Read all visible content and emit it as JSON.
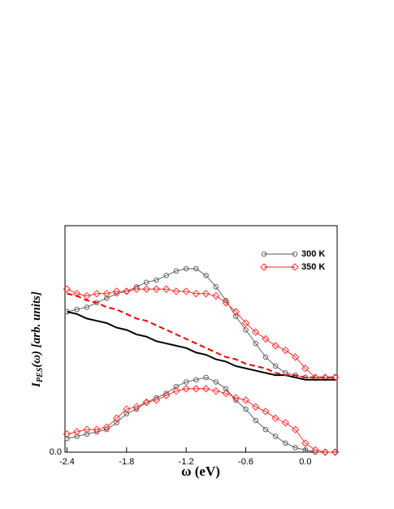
{
  "chart_data": {
    "type": "line",
    "x_label": "ω (eV)",
    "y_label": {
      "main": "I",
      "sub": "PES",
      "rest": "(ω) [arb. units]"
    },
    "x": [
      -2.4,
      -2.3,
      -2.2,
      -2.1,
      -2.0,
      -1.9,
      -1.8,
      -1.7,
      -1.6,
      -1.5,
      -1.4,
      -1.3,
      -1.2,
      -1.1,
      -1.0,
      -0.9,
      -0.8,
      -0.7,
      -0.6,
      -0.5,
      -0.4,
      -0.3,
      -0.2,
      -0.1,
      0.0,
      0.1,
      0.2,
      0.3
    ],
    "series": [
      {
        "name": "300 K",
        "color": "#555555",
        "marker": "circle",
        "style": "solid",
        "values": [
          0.62,
          0.63,
          0.64,
          0.66,
          0.68,
          0.7,
          0.71,
          0.73,
          0.75,
          0.76,
          0.78,
          0.8,
          0.81,
          0.81,
          0.78,
          0.73,
          0.67,
          0.6,
          0.54,
          0.48,
          0.42,
          0.38,
          0.35,
          0.34,
          0.33,
          0.33,
          0.33,
          0.33
        ]
      },
      {
        "name": "350 K",
        "color": "#ff2020",
        "marker": "diamond",
        "style": "solid",
        "values": [
          0.72,
          0.7,
          0.69,
          0.7,
          0.7,
          0.71,
          0.71,
          0.72,
          0.72,
          0.72,
          0.72,
          0.71,
          0.71,
          0.7,
          0.7,
          0.69,
          0.66,
          0.62,
          0.57,
          0.53,
          0.5,
          0.47,
          0.45,
          0.42,
          0.37,
          0.33,
          0.33,
          0.33
        ]
      },
      {
        "color": "#000000",
        "marker": null,
        "style": "solid",
        "values": [
          0.62,
          0.61,
          0.59,
          0.58,
          0.57,
          0.55,
          0.54,
          0.52,
          0.51,
          0.49,
          0.48,
          0.47,
          0.46,
          0.44,
          0.43,
          0.41,
          0.4,
          0.38,
          0.37,
          0.36,
          0.35,
          0.34,
          0.34,
          0.33,
          0.32,
          0.32,
          0.32,
          0.32
        ]
      },
      {
        "color": "#ee0000",
        "marker": null,
        "style": "dashed",
        "values": [
          0.7,
          0.69,
          0.67,
          0.66,
          0.64,
          0.63,
          0.61,
          0.59,
          0.58,
          0.56,
          0.54,
          0.52,
          0.5,
          0.48,
          0.46,
          0.44,
          0.42,
          0.41,
          0.39,
          0.38,
          0.37,
          0.35,
          0.34,
          0.34,
          0.33,
          0.33,
          0.33,
          0.33
        ]
      },
      {
        "color": "#555555",
        "marker": "circle",
        "style": "solid",
        "values": [
          0.06,
          0.07,
          0.08,
          0.09,
          0.1,
          0.13,
          0.17,
          0.19,
          0.22,
          0.24,
          0.26,
          0.29,
          0.31,
          0.32,
          0.33,
          0.31,
          0.28,
          0.23,
          0.19,
          0.14,
          0.1,
          0.07,
          0.04,
          0.02,
          0.01,
          0.0,
          0.0,
          0.0
        ]
      },
      {
        "color": "#ff2020",
        "marker": "diamond",
        "style": "solid",
        "values": [
          0.08,
          0.09,
          0.1,
          0.1,
          0.11,
          0.15,
          0.19,
          0.2,
          0.22,
          0.23,
          0.25,
          0.27,
          0.28,
          0.28,
          0.28,
          0.27,
          0.26,
          0.24,
          0.23,
          0.2,
          0.18,
          0.15,
          0.13,
          0.1,
          0.04,
          0.01,
          0.0,
          0.0
        ]
      }
    ],
    "xlim": [
      -2.42,
      0.32
    ],
    "ylim": [
      0,
      1
    ],
    "xticks": [
      -2.4,
      -1.8,
      -1.2,
      -0.6,
      {
        "value": 0,
        "label": "0.0"
      }
    ],
    "yticks": [
      {
        "value": 0,
        "label": "0.0"
      }
    ],
    "legend": "upper-right",
    "grid": false
  }
}
